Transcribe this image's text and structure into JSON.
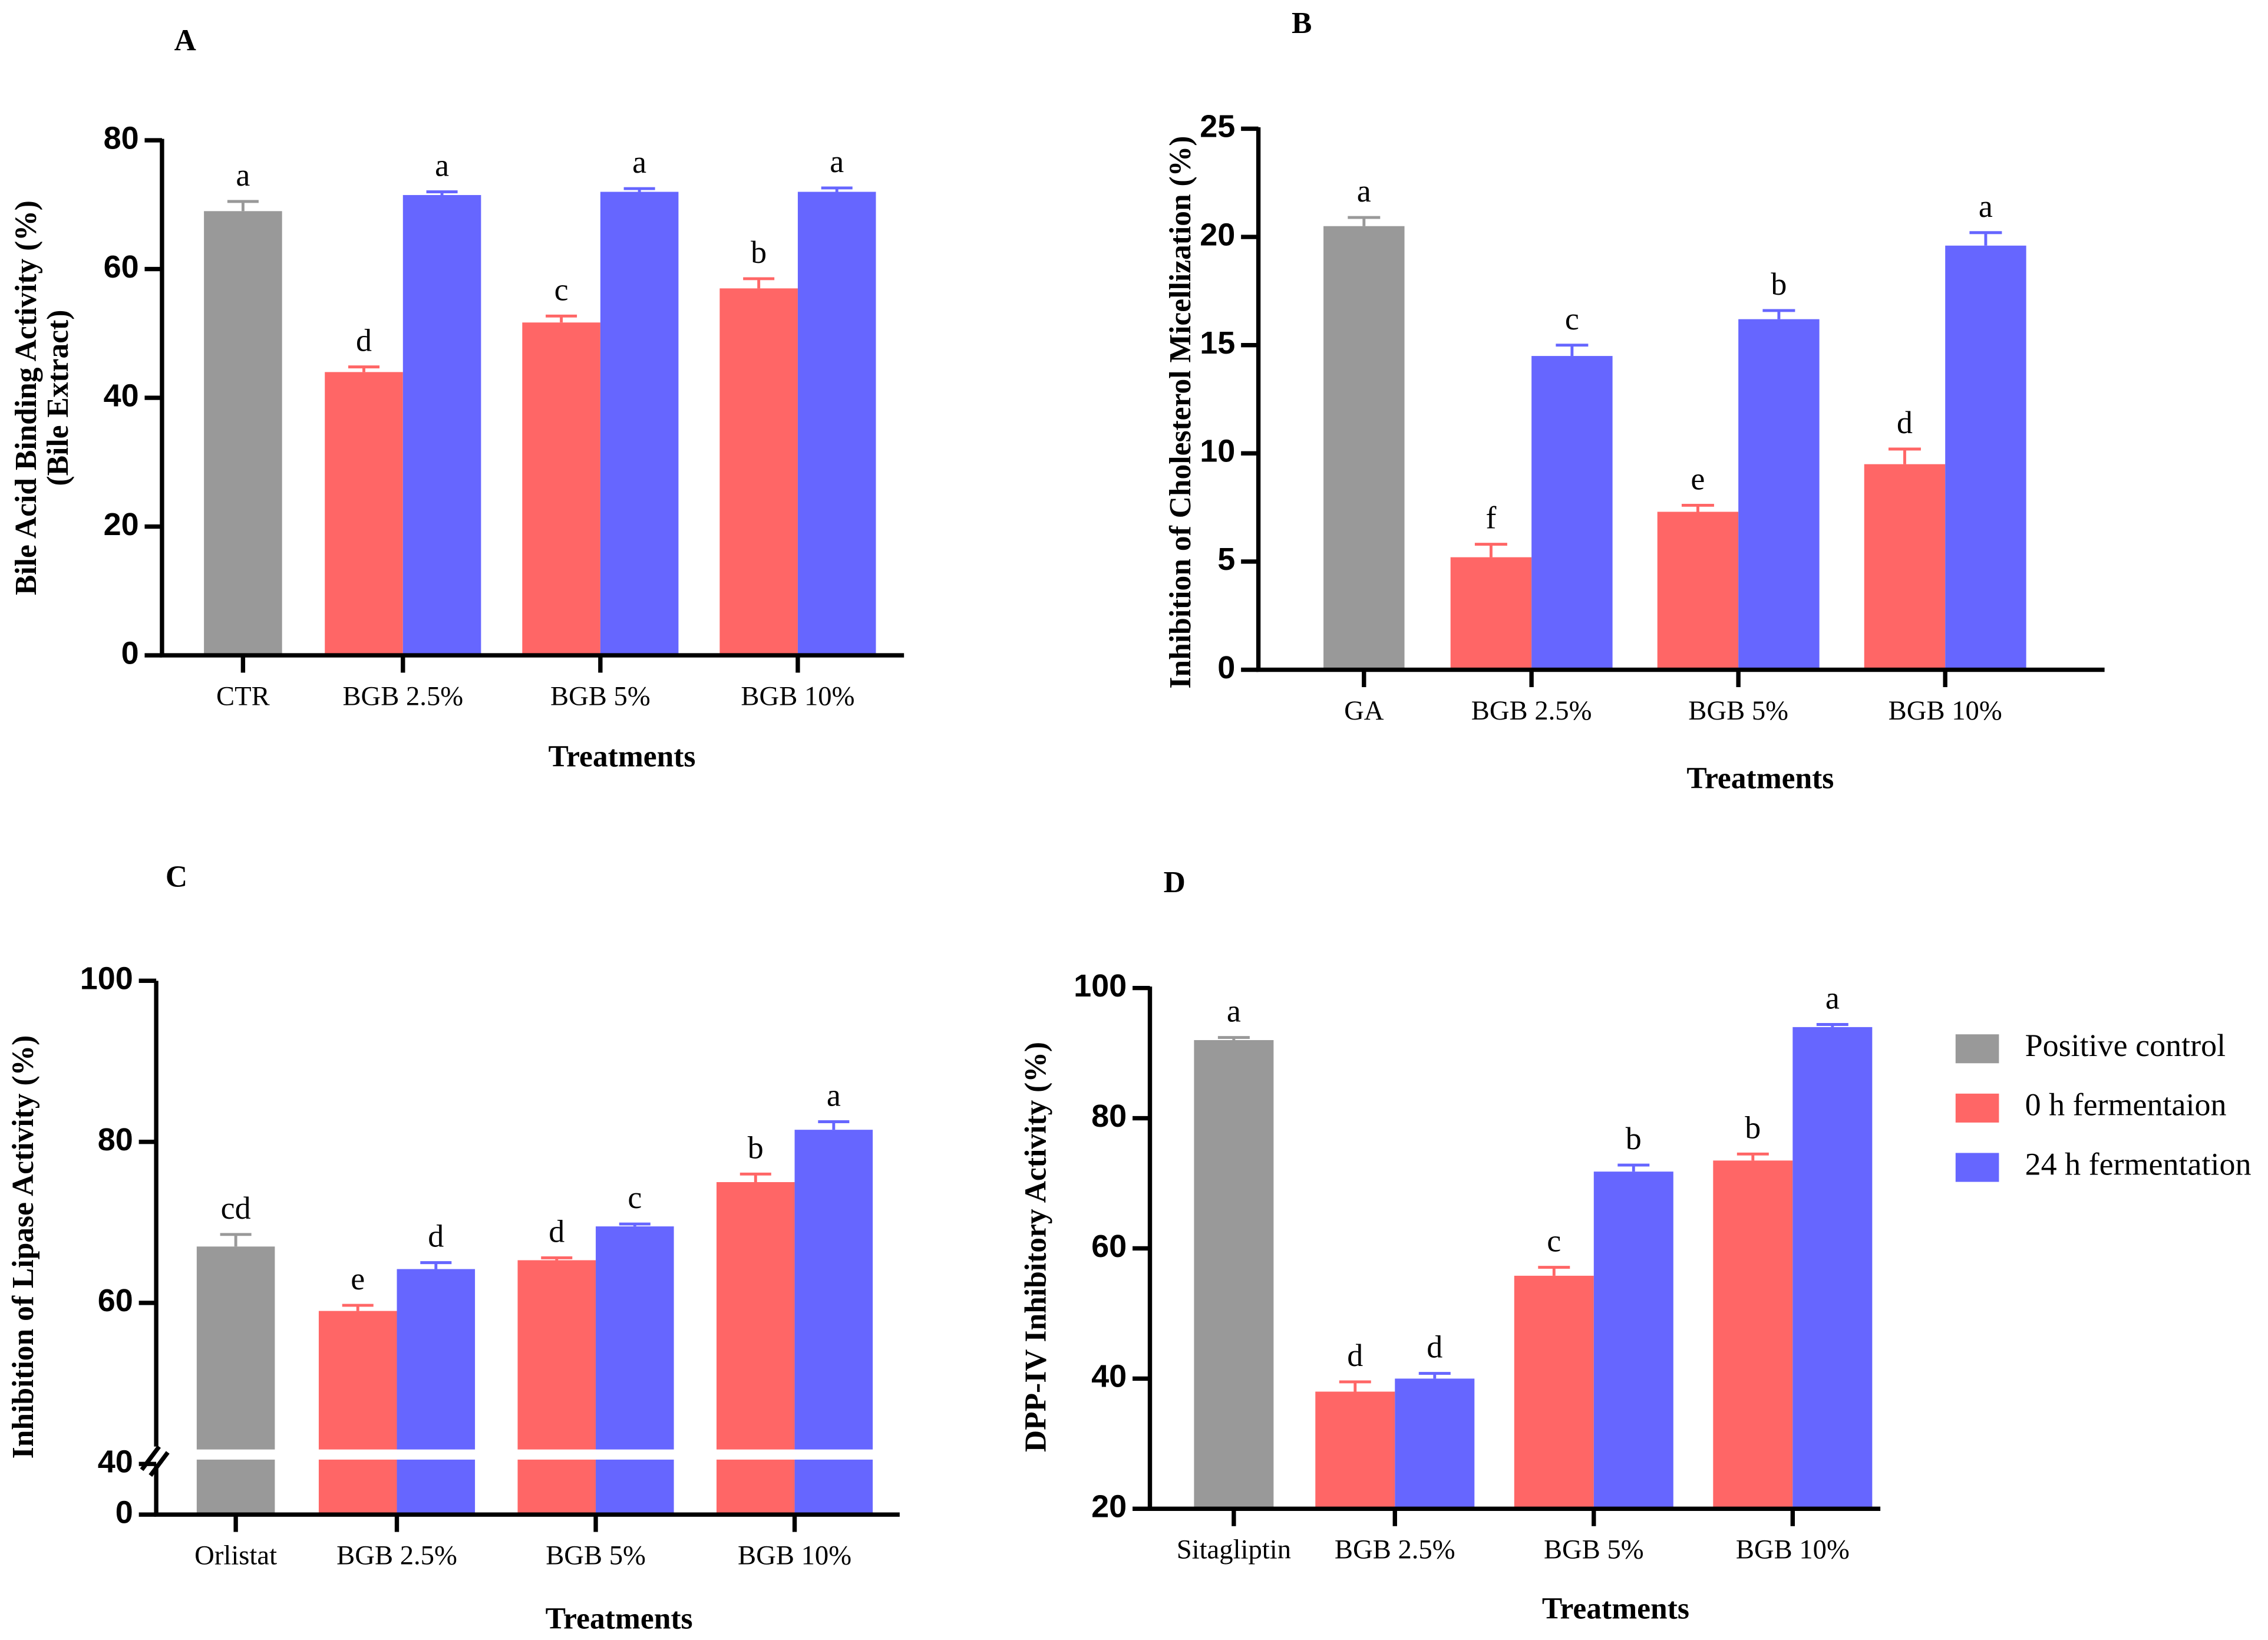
{
  "chart_data": [
    {
      "type": "bar",
      "panel": "A",
      "ylabel": [
        "Bile Acid Binding Activity (%)",
        "(Bile Extract)"
      ],
      "xlabel": "Treatments",
      "categories": [
        "CTR",
        "BGB 2.5%",
        "BGB 5%",
        "BGB 10%"
      ],
      "ylim": [
        0,
        80
      ],
      "yticks": [
        0,
        20,
        40,
        60,
        80
      ],
      "series": [
        {
          "color": "#999999",
          "values": [
            69,
            null,
            null,
            null
          ],
          "errors": [
            1.5,
            null,
            null,
            null
          ],
          "significance": [
            "a",
            null,
            null,
            null
          ]
        },
        {
          "color": "#ff6666",
          "values": [
            null,
            44,
            51.7,
            57
          ],
          "errors": [
            null,
            0.8,
            1,
            1.5
          ],
          "significance": [
            null,
            "d",
            "c",
            "b"
          ]
        },
        {
          "color": "#6666ff",
          "values": [
            null,
            71.5,
            72,
            72
          ],
          "errors": [
            null,
            0.5,
            0.5,
            0.6
          ],
          "significance": [
            null,
            "a",
            "a",
            "a"
          ]
        }
      ]
    },
    {
      "type": "bar",
      "panel": "B",
      "ylabel": [
        "Inhibition of Cholesterol Micellization (%)"
      ],
      "xlabel": "Treatments",
      "categories": [
        "GA",
        "BGB 2.5%",
        "BGB 5%",
        "BGB 10%"
      ],
      "ylim": [
        0,
        25
      ],
      "yticks": [
        0,
        5,
        10,
        15,
        20,
        25
      ],
      "series": [
        {
          "color": "#999999",
          "values": [
            20.5,
            null,
            null,
            null
          ],
          "errors": [
            0.4,
            null,
            null,
            null
          ],
          "significance": [
            "a",
            null,
            null,
            null
          ]
        },
        {
          "color": "#ff6666",
          "values": [
            null,
            5.2,
            7.3,
            9.5
          ],
          "errors": [
            null,
            0.6,
            0.3,
            0.7
          ],
          "significance": [
            null,
            "f",
            "e",
            "d"
          ]
        },
        {
          "color": "#6666ff",
          "values": [
            null,
            14.5,
            16.2,
            19.6
          ],
          "errors": [
            null,
            0.5,
            0.4,
            0.6
          ],
          "significance": [
            null,
            "c",
            "b",
            "a"
          ]
        }
      ]
    },
    {
      "type": "bar",
      "panel": "C",
      "ylabel": [
        "Inhibition of Lipase Activity (%)"
      ],
      "xlabel": "Treatments",
      "categories": [
        "Orlistat",
        "BGB 2.5%",
        "BGB 5%",
        "BGB 10%"
      ],
      "ylim": [
        0,
        100
      ],
      "yticks": [
        0,
        40,
        60,
        80,
        100
      ],
      "axis_break": 40,
      "series": [
        {
          "color": "#999999",
          "values": [
            67,
            null,
            null,
            null
          ],
          "errors": [
            1.5,
            null,
            null,
            null
          ],
          "significance": [
            "cd",
            null,
            null,
            null
          ]
        },
        {
          "color": "#ff6666",
          "values": [
            null,
            59,
            65.3,
            75
          ],
          "errors": [
            null,
            0.7,
            0.3,
            1
          ],
          "significance": [
            null,
            "e",
            "d",
            "b"
          ]
        },
        {
          "color": "#6666ff",
          "values": [
            null,
            64.2,
            69.5,
            81.5
          ],
          "errors": [
            null,
            0.8,
            0.3,
            1
          ],
          "significance": [
            null,
            "d",
            "c",
            "a"
          ]
        }
      ]
    },
    {
      "type": "bar",
      "panel": "D",
      "ylabel": [
        "DPP-IV Inhibitory Activity (%)"
      ],
      "xlabel": "Treatments",
      "categories": [
        "Sitagliptin",
        "BGB 2.5%",
        "BGB 5%",
        "BGB 10%"
      ],
      "ylim": [
        20,
        100
      ],
      "yticks": [
        20,
        40,
        60,
        80,
        100
      ],
      "legend": "right",
      "series": [
        {
          "name": "Positive control",
          "color": "#999999",
          "values": [
            92,
            null,
            null,
            null
          ],
          "errors": [
            0.4,
            null,
            null,
            null
          ],
          "significance": [
            "a",
            null,
            null,
            null
          ]
        },
        {
          "name": "0 h fermentaion",
          "color": "#ff6666",
          "values": [
            null,
            38,
            55.8,
            73.5
          ],
          "errors": [
            null,
            1.5,
            1.3,
            1
          ],
          "significance": [
            null,
            "d",
            "c",
            "b"
          ]
        },
        {
          "name": "24 h fermentation",
          "color": "#6666ff",
          "values": [
            null,
            40,
            71.8,
            94
          ],
          "errors": [
            null,
            0.8,
            1,
            0.4
          ],
          "significance": [
            null,
            "d",
            "b",
            "a"
          ]
        }
      ]
    }
  ]
}
